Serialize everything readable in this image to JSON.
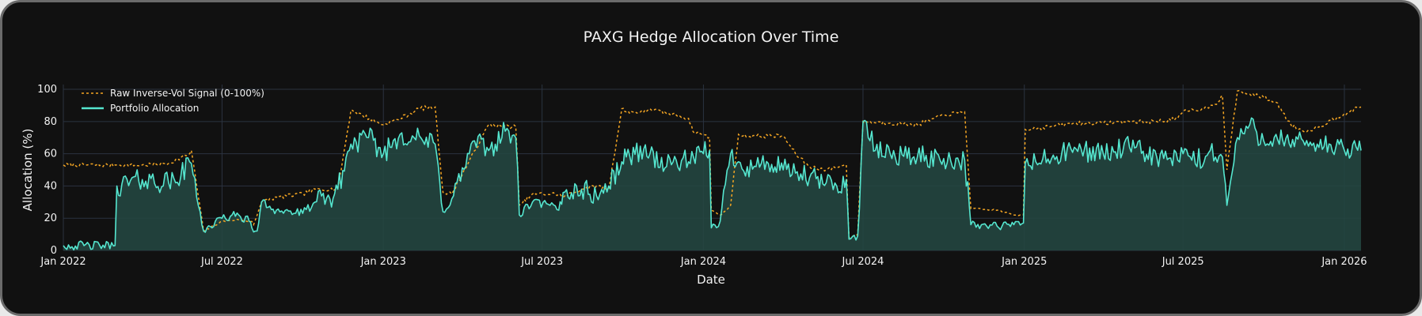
{
  "chart_data": {
    "type": "line",
    "title": "PAXG Hedge Allocation Over Time",
    "xlabel": "Date",
    "ylabel": "Allocation (%)",
    "x_ticks": [
      "Jan 2022",
      "Jul 2022",
      "Jan 2023",
      "Jul 2023",
      "Jan 2024",
      "Jul 2024",
      "Jan 2025",
      "Jul 2025",
      "Jan 2026"
    ],
    "x_tick_dates": [
      "2022-01-01",
      "2022-07-01",
      "2023-01-01",
      "2023-07-01",
      "2024-01-01",
      "2024-07-01",
      "2025-01-01",
      "2025-07-01",
      "2026-01-01"
    ],
    "xlim": [
      "2022-01-01",
      "2026-01-20"
    ],
    "y_ticks": [
      "0",
      "20",
      "40",
      "60",
      "80",
      "100"
    ],
    "ylim": [
      0,
      101
    ],
    "grid": true,
    "legend_position": "top-left",
    "colors": {
      "background": "#111111",
      "grid": "#2b3340",
      "raw_signal": "#f5a623",
      "allocation": "#55e6cf",
      "allocation_fill": "#234640"
    },
    "series": [
      {
        "name": "Raw Inverse-Vol Signal (0-100%)",
        "style": "dotted",
        "x": [
          "2022-01-01",
          "2022-03-01",
          "2022-03-03",
          "2022-04-01",
          "2022-05-01",
          "2022-05-25",
          "2022-05-27",
          "2022-06-10",
          "2022-07-01",
          "2022-07-20",
          "2022-08-01",
          "2022-08-04",
          "2022-08-06",
          "2022-08-15",
          "2022-09-01",
          "2022-10-01",
          "2022-10-15",
          "2022-11-01",
          "2022-11-10",
          "2022-11-25",
          "2023-01-01",
          "2023-01-20",
          "2023-02-05",
          "2023-02-10",
          "2023-03-01",
          "2023-03-10",
          "2023-03-20",
          "2023-05-01",
          "2023-05-20",
          "2023-06-01",
          "2023-06-05",
          "2023-06-20",
          "2023-07-20",
          "2023-07-25",
          "2023-08-15",
          "2023-09-01",
          "2023-09-15",
          "2023-09-30",
          "2023-10-05",
          "2023-10-25",
          "2023-11-01",
          "2023-11-20",
          "2023-12-01",
          "2023-12-15",
          "2023-12-20",
          "2024-01-01",
          "2024-01-08",
          "2024-01-10",
          "2024-01-20",
          "2024-01-25",
          "2024-02-01",
          "2024-02-10",
          "2024-02-15",
          "2024-03-15",
          "2024-04-01",
          "2024-04-15",
          "2024-05-01",
          "2024-05-20",
          "2024-06-01",
          "2024-06-12",
          "2024-06-15",
          "2024-06-25",
          "2024-07-01",
          "2024-08-01",
          "2024-09-01",
          "2024-10-01",
          "2024-10-25",
          "2024-11-01",
          "2024-12-01",
          "2024-12-20",
          "2024-12-31",
          "2025-01-02",
          "2025-02-01",
          "2025-03-01",
          "2025-04-01",
          "2025-05-01",
          "2025-06-01",
          "2025-06-25",
          "2025-07-01",
          "2025-07-25",
          "2025-08-01",
          "2025-08-10",
          "2025-08-15",
          "2025-08-20",
          "2025-09-01",
          "2025-09-15",
          "2025-10-01",
          "2025-10-15",
          "2025-11-01",
          "2025-11-15",
          "2025-12-01",
          "2026-01-01",
          "2026-01-20"
        ],
        "y": [
          53,
          53,
          53,
          53,
          54,
          60,
          62,
          12,
          18,
          19,
          18,
          18,
          16,
          30,
          33,
          35,
          38,
          38,
          38,
          87,
          78,
          82,
          86,
          88,
          89,
          36,
          35,
          78,
          77,
          77,
          28,
          35,
          35,
          33,
          38,
          40,
          38,
          88,
          86,
          86,
          88,
          85,
          84,
          82,
          74,
          72,
          70,
          25,
          22,
          24,
          28,
          72,
          71,
          71,
          71,
          60,
          52,
          50,
          52,
          53,
          8,
          10,
          80,
          79,
          78,
          84,
          86,
          26,
          25,
          22,
          22,
          75,
          77,
          79,
          79,
          80,
          80,
          82,
          86,
          88,
          90,
          92,
          96,
          50,
          99,
          97,
          95,
          92,
          78,
          74,
          76,
          85,
          89
        ]
      },
      {
        "name": "Portfolio Allocation",
        "style": "solid",
        "x": [
          "2022-01-01",
          "2022-03-01",
          "2022-03-03",
          "2022-04-01",
          "2022-05-01",
          "2022-05-15",
          "2022-05-25",
          "2022-05-27",
          "2022-06-10",
          "2022-07-01",
          "2022-07-20",
          "2022-08-01",
          "2022-08-04",
          "2022-08-10",
          "2022-08-15",
          "2022-09-01",
          "2022-10-01",
          "2022-10-15",
          "2022-11-01",
          "2022-11-10",
          "2022-11-25",
          "2022-12-15",
          "2023-01-01",
          "2023-01-20",
          "2023-02-05",
          "2023-02-15",
          "2023-03-01",
          "2023-03-10",
          "2023-03-20",
          "2023-04-15",
          "2023-05-01",
          "2023-05-20",
          "2023-06-01",
          "2023-06-05",
          "2023-06-20",
          "2023-07-10",
          "2023-07-20",
          "2023-07-25",
          "2023-08-15",
          "2023-09-01",
          "2023-09-15",
          "2023-09-30",
          "2023-10-05",
          "2023-10-25",
          "2023-11-01",
          "2023-11-20",
          "2023-12-01",
          "2023-12-15",
          "2024-01-01",
          "2024-01-08",
          "2024-01-10",
          "2024-01-20",
          "2024-02-01",
          "2024-02-10",
          "2024-02-20",
          "2024-03-15",
          "2024-04-01",
          "2024-04-15",
          "2024-05-01",
          "2024-05-20",
          "2024-06-01",
          "2024-06-12",
          "2024-06-15",
          "2024-06-25",
          "2024-07-01",
          "2024-07-15",
          "2024-08-01",
          "2024-09-01",
          "2024-10-01",
          "2024-10-25",
          "2024-11-01",
          "2024-12-01",
          "2024-12-20",
          "2024-12-31",
          "2025-01-02",
          "2025-02-01",
          "2025-03-01",
          "2025-04-01",
          "2025-05-01",
          "2025-06-01",
          "2025-06-25",
          "2025-07-01",
          "2025-07-25",
          "2025-08-01",
          "2025-08-15",
          "2025-08-20",
          "2025-09-01",
          "2025-09-15",
          "2025-10-01",
          "2025-10-15",
          "2025-11-01",
          "2025-11-15",
          "2025-12-01",
          "2026-01-01",
          "2026-01-20"
        ],
        "y": [
          3,
          3,
          40,
          44,
          42,
          46,
          55,
          54,
          12,
          20,
          22,
          18,
          14,
          12,
          30,
          25,
          23,
          30,
          32,
          38,
          66,
          70,
          60,
          72,
          70,
          68,
          66,
          24,
          32,
          68,
          62,
          74,
          70,
          22,
          30,
          28,
          25,
          36,
          38,
          34,
          40,
          55,
          58,
          63,
          60,
          52,
          56,
          55,
          60,
          62,
          14,
          18,
          60,
          55,
          52,
          54,
          50,
          48,
          45,
          42,
          40,
          44,
          7,
          9,
          80,
          62,
          60,
          58,
          57,
          56,
          16,
          15,
          16,
          17,
          54,
          57,
          63,
          60,
          64,
          58,
          56,
          60,
          55,
          62,
          58,
          28,
          70,
          78,
          68,
          72,
          64,
          68,
          66,
          62,
          62
        ]
      }
    ]
  }
}
